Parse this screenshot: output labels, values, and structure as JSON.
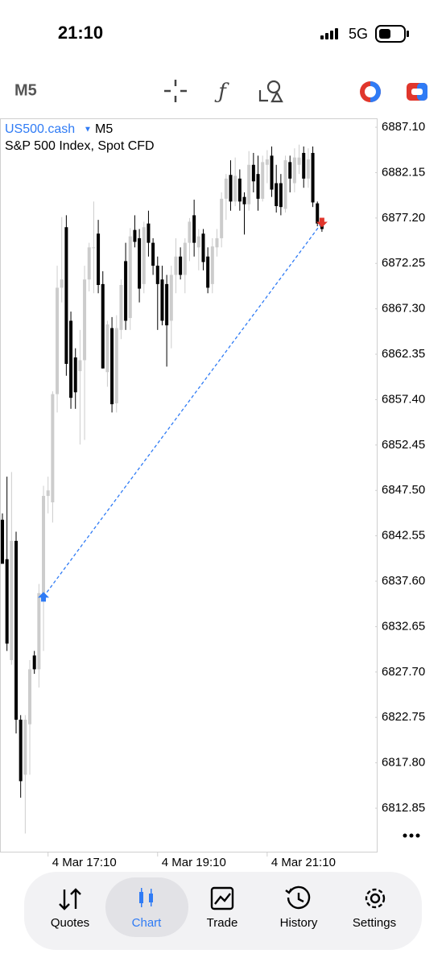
{
  "status_bar": {
    "time": "21:10",
    "network": "5G"
  },
  "toolbar": {
    "timeframe": "M5"
  },
  "chart_header": {
    "symbol": "US500.cash",
    "timeframe": "M5",
    "description": "S&P 500 Index, Spot CFD"
  },
  "chart_data": {
    "type": "candlestick",
    "categories": [
      null,
      null,
      null,
      null,
      null,
      null,
      null,
      null,
      null,
      null,
      "4 Mar 17:10",
      null,
      null,
      null,
      null,
      null,
      null,
      null,
      null,
      null,
      null,
      null,
      null,
      null,
      null,
      null,
      null,
      null,
      null,
      null,
      null,
      null,
      null,
      null,
      "4 Mar 19:10",
      null,
      null,
      null,
      null,
      null,
      null,
      null,
      null,
      null,
      null,
      null,
      null,
      null,
      null,
      null,
      null,
      null,
      null,
      null,
      null,
      null,
      null,
      null,
      "4 Mar 21:10",
      null,
      null,
      null,
      null,
      null,
      null,
      null,
      null,
      null,
      null,
      null,
      null
    ],
    "open": [
      6844.3,
      6840,
      6829,
      6842,
      6822.5,
      6816.5,
      6822,
      6829.5,
      6828,
      6835.5,
      6846.9,
      6846.2,
      6858,
      6869.6,
      6876.2,
      6866,
      6862,
      6860.5,
      6861.7,
      6870.5,
      6874,
      6875.5,
      6870,
      6860.4,
      6865.2,
      6857,
      6865,
      6872.5,
      6866.3,
      6875.9,
      6875,
      6870,
      6876.6,
      6874.5,
      6872,
      6870.5,
      6870,
      6866,
      6871,
      6873,
      6871,
      6874.5,
      6877.5,
      6874,
      6875.5,
      6873,
      6870,
      6874,
      6875,
      6879.3,
      6881.9,
      6879,
      6881.5,
      6879.5,
      6878.7,
      6883,
      6882,
      6879.3,
      6883,
      6884,
      6881,
      6881,
      6878.2,
      6883.3,
      6881,
      6883,
      6884.3,
      6881.5,
      6884.3,
      6878.8,
      6876.6
    ],
    "high": [
      6845,
      6849,
      6849.5,
      6843,
      6823,
      6823,
      6829,
      6830,
      6837.3,
      6848,
      6849,
      6858.3,
      6872,
      6877.3,
      6877.5,
      6867,
      6863,
      6865,
      6872,
      6874.5,
      6879,
      6877,
      6871.4,
      6866,
      6866.4,
      6866.6,
      6870.5,
      6874.5,
      6876.1,
      6877.5,
      6876,
      6876.8,
      6878,
      6875,
      6873,
      6872,
      6871,
      6872,
      6875,
      6874,
      6875,
      6877.2,
      6879.2,
      6876,
      6876,
      6874,
      6875,
      6876,
      6880,
      6882,
      6883.5,
      6883.8,
      6882.5,
      6880,
      6884.5,
      6884.3,
      6884,
      6884,
      6884.6,
      6885,
      6883,
      6882,
      6884,
      6884,
      6884.8,
      6885.2,
      6885,
      6884.8,
      6885,
      6879,
      6877
    ],
    "low": [
      6840,
      6830,
      6828.5,
      6821,
      6814,
      6810.1,
      6816.5,
      6827.5,
      6826,
      6830,
      6845,
      6844,
      6856,
      6868,
      6860,
      6856.4,
      6856.4,
      6852.5,
      6853,
      6869.2,
      6869,
      6869,
      6860.8,
      6858.8,
      6856,
      6856,
      6864,
      6865,
      6865,
      6874,
      6868,
      6869,
      6873,
      6871,
      6865,
      6865.5,
      6861,
      6863,
      6869,
      6870.5,
      6869,
      6872.5,
      6873,
      6871.5,
      6871.5,
      6869,
      6869,
      6873,
      6874,
      6877,
      6878,
      6878.5,
      6878,
      6875.4,
      6878,
      6880,
      6878,
      6879,
      6881,
      6879.5,
      6877.8,
      6877.5,
      6877.8,
      6880,
      6880,
      6882,
      6880.5,
      6880.5,
      6878.4,
      6876.3,
      6875.7
    ],
    "close": [
      6839.5,
      6830.8,
      6842,
      6822.5,
      6815.8,
      6822.5,
      6828,
      6828,
      6836.3,
      6846.9,
      6847.5,
      6858,
      6869.6,
      6870.5,
      6861.3,
      6857.6,
      6858.2,
      6861.7,
      6870.5,
      6874,
      6874,
      6869.9,
      6860.8,
      6865.6,
      6856.9,
      6865.2,
      6869.9,
      6866,
      6875.2,
      6874.6,
      6869.5,
      6876.2,
      6874.5,
      6872,
      6870,
      6866,
      6865.5,
      6871,
      6873,
      6871,
      6874.5,
      6876.8,
      6874.5,
      6875.2,
      6872.4,
      6869.6,
      6874.1,
      6875,
      6879.3,
      6881.5,
      6879,
      6881.8,
      6879,
      6878.7,
      6883,
      6881.2,
      6879.3,
      6883.3,
      6883.6,
      6880.3,
      6878.5,
      6878.4,
      6883.5,
      6881.5,
      6883.8,
      6883.8,
      6881.5,
      6883.6,
      6878.9,
      6876.6,
      6876
    ],
    "up_color": "#cccccc",
    "down_color": "#000000",
    "trade": {
      "open_price": 6835.9,
      "close_price": 6876.7,
      "open_color": "#2f7bf5",
      "close_color": "#e0362c"
    },
    "ylim": [
      6808.11,
      6888.07
    ],
    "yticks": [
      {
        "value": 6887.1,
        "label": "6887.10"
      },
      6882.15,
      {
        "value": 6877.2,
        "label": "6877.20"
      },
      6872.25,
      {
        "value": 6867.3,
        "label": "6867.30"
      },
      6862.35,
      {
        "value": 6857.4,
        "label": "6857.40"
      },
      6852.45,
      {
        "value": 6847.5,
        "label": "6847.50"
      },
      6842.55,
      {
        "value": 6837.6,
        "label": "6837.60"
      },
      6832.65,
      {
        "value": 6827.7,
        "label": "6827.70"
      },
      6822.75,
      {
        "value": 6817.8,
        "label": "6817.80"
      },
      6812.85
    ],
    "grid": false
  },
  "nav": {
    "tabs": [
      "Quotes",
      "Chart",
      "Trade",
      "History",
      "Settings"
    ]
  }
}
